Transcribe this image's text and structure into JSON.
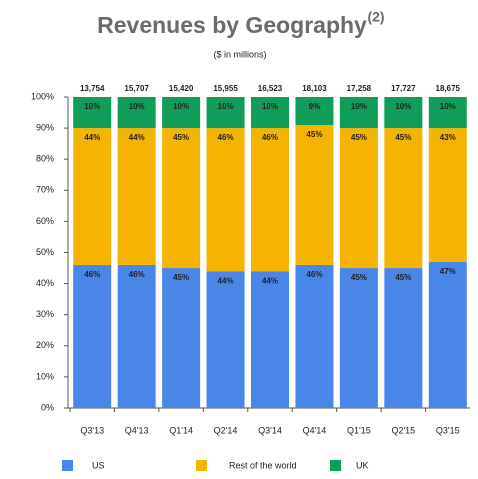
{
  "chart_data": {
    "type": "stacked_bar",
    "title": "Revenues by Geography",
    "title_note": "(2)",
    "subtitle": "($ in millions)",
    "categories": [
      "Q3'13",
      "Q4'13",
      "Q1'14",
      "Q2'14",
      "Q3'14",
      "Q4'14",
      "Q1'15",
      "Q2'15",
      "Q3'15"
    ],
    "totals": [
      {
        "value": 13754,
        "label": "13,754"
      },
      {
        "value": 15707,
        "label": "15,707"
      },
      {
        "value": 15420,
        "label": "15,420"
      },
      {
        "value": 15955,
        "label": "15,955"
      },
      {
        "value": 16523,
        "label": "16,523"
      },
      {
        "value": 18103,
        "label": "18,103"
      },
      {
        "value": 17258,
        "label": "17,258"
      },
      {
        "value": 17727,
        "label": "17,727"
      },
      {
        "value": 18675,
        "label": "18,675"
      }
    ],
    "series": [
      {
        "name": "US",
        "color": "#4a86e8",
        "values": [
          46,
          46,
          45,
          44,
          44,
          46,
          45,
          45,
          47
        ],
        "value_labels": [
          "46%",
          "46%",
          "45%",
          "44%",
          "44%",
          "46%",
          "45%",
          "45%",
          "47%"
        ]
      },
      {
        "name": "Rest of the world",
        "color": "#f4b400",
        "values": [
          44,
          44,
          45,
          46,
          46,
          45,
          45,
          45,
          43
        ],
        "value_labels": [
          "44%",
          "44%",
          "45%",
          "46%",
          "46%",
          "45%",
          "45%",
          "45%",
          "43%"
        ]
      },
      {
        "name": "UK",
        "color": "#0f9d58",
        "values": [
          10,
          10,
          10,
          10,
          10,
          9,
          10,
          10,
          10
        ],
        "value_labels": [
          "10%",
          "10%",
          "10%",
          "10%",
          "10%",
          "9%",
          "10%",
          "10%",
          "10%"
        ]
      }
    ],
    "ylim": [
      0,
      100
    ],
    "yticks": [
      {
        "value": 0,
        "label": "0%"
      },
      {
        "value": 10,
        "label": "10%"
      },
      {
        "value": 20,
        "label": "20%"
      },
      {
        "value": 30,
        "label": "30%"
      },
      {
        "value": 40,
        "label": "40%"
      },
      {
        "value": 50,
        "label": "50%"
      },
      {
        "value": 60,
        "label": "60%"
      },
      {
        "value": 70,
        "label": "70%"
      },
      {
        "value": 80,
        "label": "80%"
      },
      {
        "value": 90,
        "label": "90%"
      },
      {
        "value": 100,
        "label": "100%"
      }
    ],
    "legend": "bottom"
  }
}
